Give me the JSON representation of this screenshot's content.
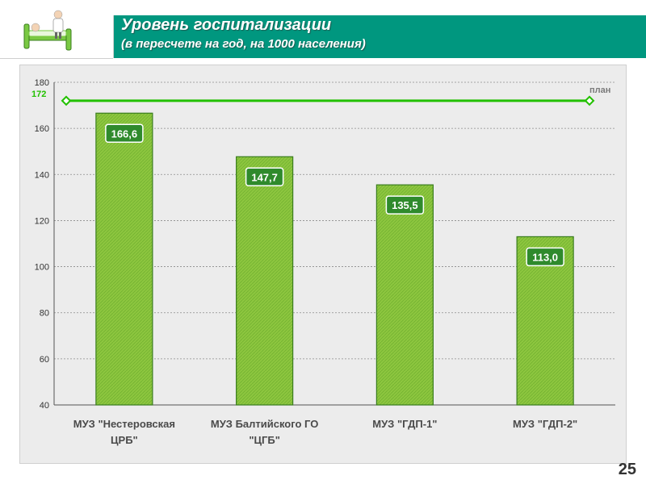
{
  "header": {
    "title": "Уровень госпитализации",
    "subtitle": "(в пересчете на год, на 1000 населения)"
  },
  "page_number": "25",
  "colors": {
    "header_bg": "#00977f",
    "bar_fill": "#8dc63f",
    "bar_stroke": "#3a7d1e",
    "plan_line": "#22c000",
    "label_bg": "#2f8a2c",
    "plan_text": "#7a7a7a"
  },
  "icons": {
    "logo": "hospital-bed-icon"
  },
  "chart_data": {
    "type": "bar",
    "title": "",
    "xlabel": "",
    "ylabel": "",
    "ylim": [
      40,
      180
    ],
    "yticks": [
      40,
      60,
      80,
      100,
      120,
      140,
      160,
      180
    ],
    "grid": true,
    "categories": [
      [
        "МУЗ \"Нестеровская",
        "ЦРБ\""
      ],
      [
        "МУЗ Балтийского ГО",
        "\"ЦГБ\""
      ],
      [
        "МУЗ \"ГДП-1\""
      ],
      [
        "МУЗ \"ГДП-2\""
      ]
    ],
    "values": [
      166.6,
      147.7,
      135.5,
      113.0
    ],
    "value_labels": [
      "166,6",
      "147,7",
      "135,5",
      "113,0"
    ],
    "plan": {
      "value": 172,
      "label": "план",
      "value_label": "172"
    }
  }
}
